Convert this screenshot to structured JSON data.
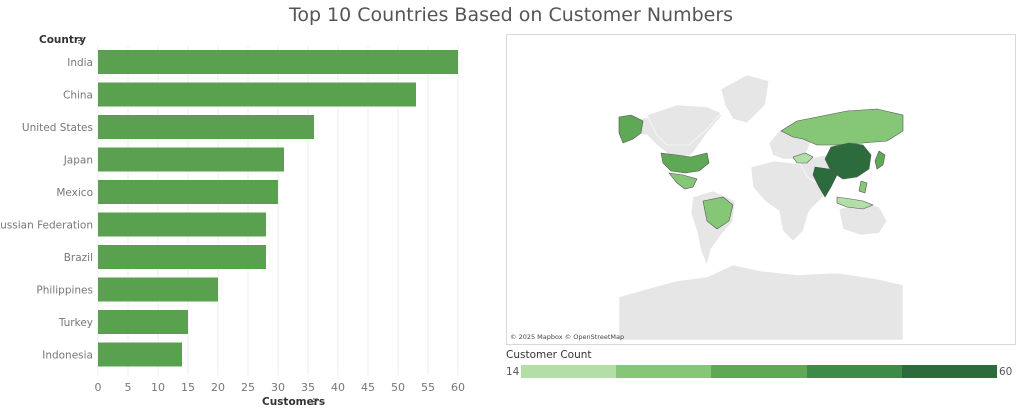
{
  "title": "Top 10 Countries Based on Customer Numbers",
  "colors": {
    "bar": "#59a14f",
    "grid": "#eeeeee",
    "land_default": "#e6e6e6",
    "land_border": "#ffffff",
    "legend": [
      "#b3dea7",
      "#86c677",
      "#5fa855",
      "#3d8b48",
      "#2c6b3c"
    ]
  },
  "chart_data": {
    "type": "bar",
    "orientation": "horizontal",
    "categories": [
      "India",
      "China",
      "United States",
      "Japan",
      "Mexico",
      "Russian Federation",
      "Brazil",
      "Philippines",
      "Turkey",
      "Indonesia"
    ],
    "values": [
      60,
      53,
      36,
      31,
      30,
      28,
      28,
      20,
      15,
      14
    ],
    "ylabel": "Country",
    "xlabel": "Customers",
    "xlim": [
      0,
      62
    ],
    "xticks": [
      0,
      5,
      10,
      15,
      20,
      25,
      30,
      35,
      40,
      45,
      50,
      55,
      60
    ],
    "grid": true
  },
  "map": {
    "attribution": "© 2025 Mapbox © OpenStreetMap",
    "legend_title": "Customer Count",
    "legend_min": "14",
    "legend_max": "60"
  }
}
